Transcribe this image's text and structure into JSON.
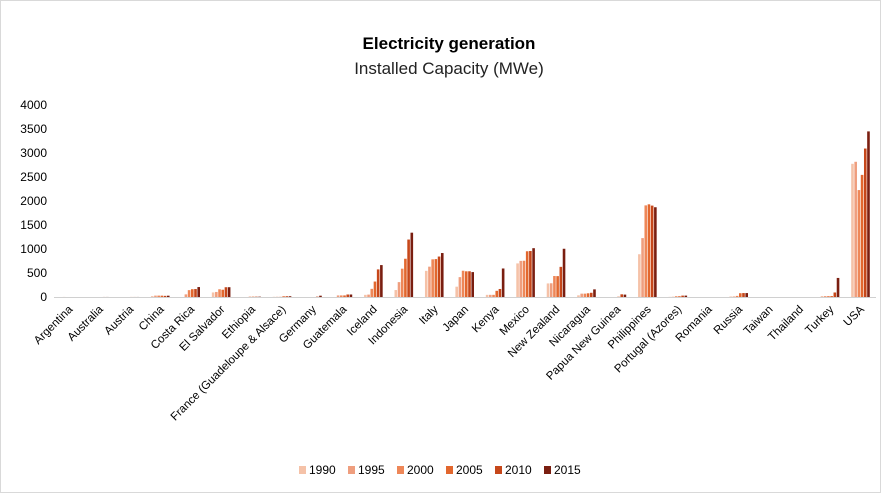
{
  "chart_data": {
    "type": "bar",
    "title": "Electricity generation",
    "subtitle": "Installed Capacity  (MWe)",
    "xlabel": "",
    "ylabel": "",
    "ylim": [
      0,
      4000
    ],
    "yticks": [
      0,
      500,
      1000,
      1500,
      2000,
      2500,
      3000,
      3500,
      4000
    ],
    "grid": false,
    "legend_position": "bottom",
    "categories": [
      "Argentina",
      "Australia",
      "Austria",
      "China",
      "Costa Rica",
      "El Salvador",
      "Ethiopia",
      "France (Guadeloupe & Alsace)",
      "Germany",
      "Guatemala",
      "Iceland",
      "Indonesia",
      "Italy",
      "Japan",
      "Kenya",
      "Mexico",
      "New Zealand",
      "Nicaragua",
      "Papua New Guinea",
      "Philippines",
      "Portugal (Azores)",
      "Romania",
      "Russia",
      "Taiwan",
      "Thailand",
      "Turkey",
      "USA"
    ],
    "series": [
      {
        "name": "1990",
        "color": "#f5c2a8",
        "values": [
          0,
          0,
          0,
          19,
          0,
          95,
          0,
          4,
          0,
          0,
          45,
          145,
          545,
          215,
          45,
          700,
          283,
          35,
          0,
          891,
          3,
          0,
          11,
          0,
          0,
          20,
          2775
        ]
      },
      {
        "name": "1995",
        "color": "#ef9e7e",
        "values": [
          1,
          0,
          0,
          29,
          55,
          105,
          0,
          4,
          0,
          33,
          50,
          310,
          632,
          414,
          45,
          753,
          286,
          70,
          0,
          1227,
          5,
          0,
          11,
          0,
          0,
          20,
          2817
        ]
      },
      {
        "name": "2000",
        "color": "#ee8758",
        "values": [
          0,
          0,
          0,
          29,
          143,
          161,
          7,
          4,
          0,
          33,
          170,
          590,
          785,
          547,
          45,
          755,
          437,
          70,
          0,
          1909,
          16,
          0,
          23,
          0,
          0,
          20,
          2228
        ]
      },
      {
        "name": "2005",
        "color": "#e2672e",
        "values": [
          0,
          0,
          1,
          28,
          163,
          151,
          7,
          15,
          0,
          33,
          322,
          797,
          790,
          535,
          129,
          953,
          435,
          77,
          6,
          1931,
          16,
          0,
          79,
          0,
          0,
          20,
          2544
        ]
      },
      {
        "name": "2010",
        "color": "#c6471a",
        "values": [
          0,
          1,
          1,
          24,
          166,
          204,
          7,
          16,
          7,
          52,
          575,
          1197,
          843,
          536,
          167,
          958,
          628,
          88,
          56,
          1904,
          29,
          0,
          82,
          0,
          0,
          94,
          3093
        ]
      },
      {
        "name": "2015",
        "color": "#7a1e10",
        "values": [
          0,
          1,
          1,
          27,
          207,
          204,
          7,
          16,
          27,
          52,
          665,
          1340,
          916,
          519,
          594,
          1017,
          1005,
          159,
          50,
          1870,
          29,
          0,
          82,
          0,
          0,
          397,
          3450
        ]
      }
    ]
  }
}
